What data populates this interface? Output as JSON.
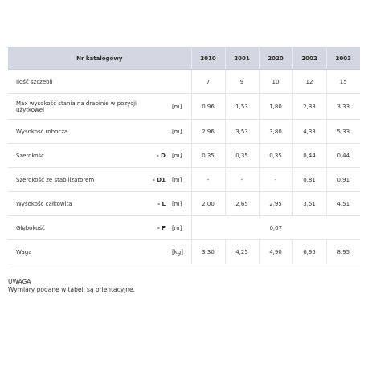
{
  "table": {
    "header_label": "Nr katalogowy",
    "models": [
      "2010",
      "2001",
      "2020",
      "2002",
      "2003"
    ],
    "rows": [
      {
        "name": "Ilość szczebli",
        "code": "",
        "unit": "",
        "values": [
          "7",
          "9",
          "10",
          "12",
          "15"
        ]
      },
      {
        "name": "Max wysokość stania na drabinie w pozycji użytkowej",
        "code": "",
        "unit": "[m]",
        "values": [
          "0,96",
          "1,53",
          "1,80",
          "2,33",
          "3,33"
        ]
      },
      {
        "name": "Wysokość robocza",
        "code": "",
        "unit": "[m]",
        "values": [
          "2,96",
          "3,53",
          "3,80",
          "4,33",
          "5,33"
        ]
      },
      {
        "name": "Szerokość",
        "code": "- D",
        "unit": "[m]",
        "values": [
          "0,35",
          "0,35",
          "0,35",
          "0,44",
          "0,44"
        ]
      },
      {
        "name": "Szerokość ze stabilizatorem",
        "code": "- D1",
        "unit": "[m]",
        "values": [
          "-",
          "-",
          "-",
          "0,81",
          "0,91"
        ]
      },
      {
        "name": "Wysokość całkowita",
        "code": "- L",
        "unit": "[m]",
        "values": [
          "2,00",
          "2,65",
          "2,95",
          "3,51",
          "4,51"
        ]
      },
      {
        "name": "Głębokość",
        "code": "- F",
        "unit": "[m]",
        "merged_value": "0,07"
      },
      {
        "name": "Waga",
        "code": "",
        "unit": "[kg]",
        "values": [
          "3,30",
          "4,25",
          "4,90",
          "6,95",
          "8,95"
        ]
      }
    ]
  },
  "note": {
    "title": "UWAGA",
    "text": "Wymiary podane w tabeli są orientacyjne."
  }
}
